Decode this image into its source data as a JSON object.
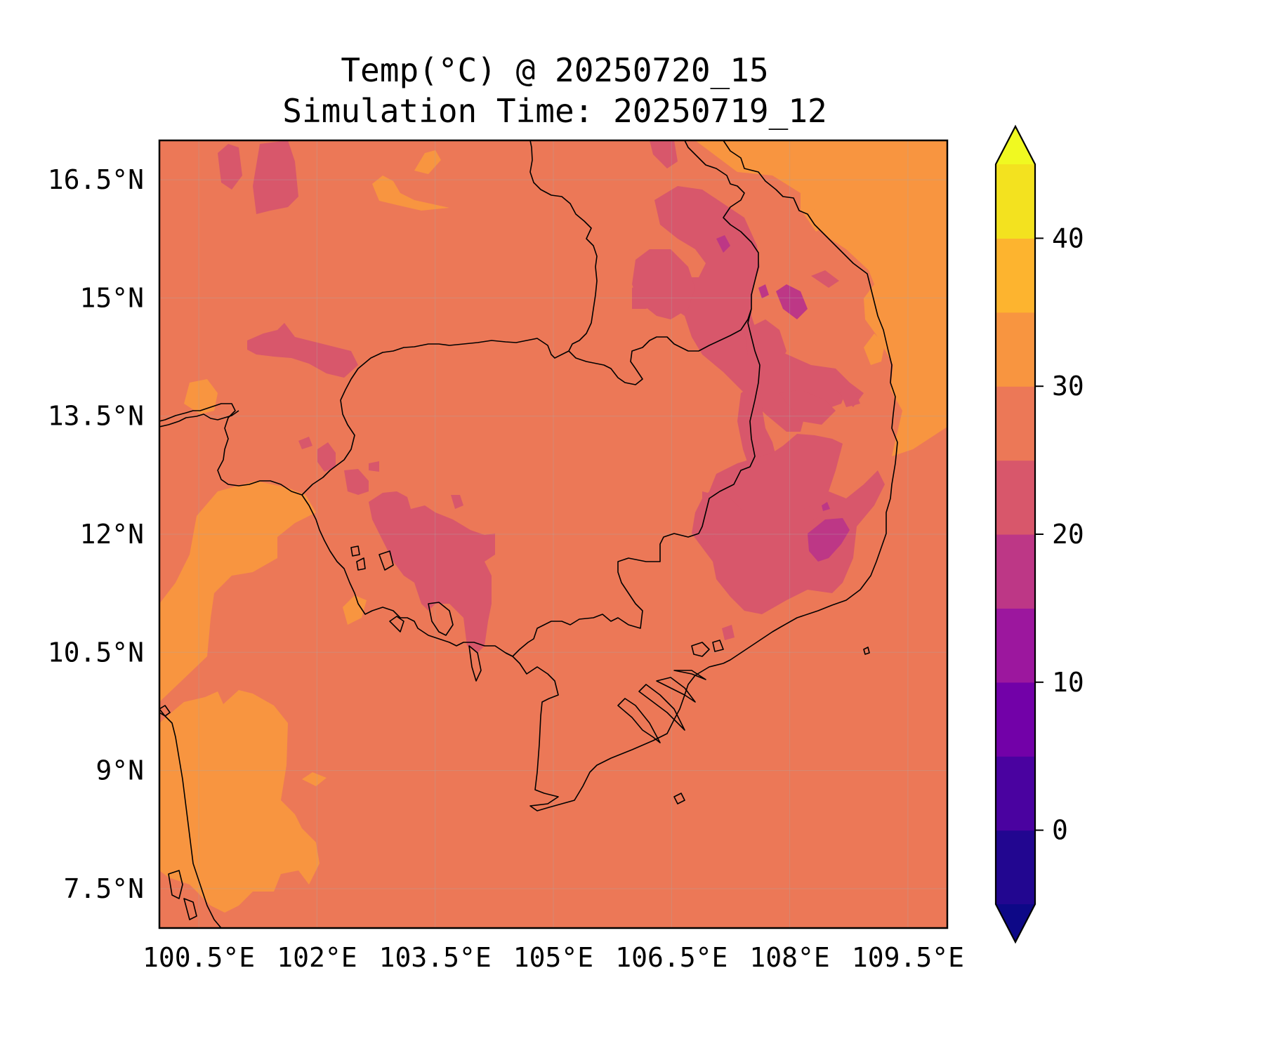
{
  "title": "Temp(°C) @ 20250720_15",
  "subtitle": "Simulation Time: 20250719_12",
  "map": {
    "type": "filled-contour-map",
    "variable": "Temperature",
    "unit": "°C",
    "lon_range": [
      100.0,
      110.0
    ],
    "lat_range": [
      7.0,
      17.0
    ],
    "lon_ticks": [
      "100.5°E",
      "102°E",
      "103.5°E",
      "105°E",
      "106.5°E",
      "108°E",
      "109.5°E"
    ],
    "lat_ticks": [
      "16.5°N",
      "15°N",
      "13.5°N",
      "12°N",
      "10.5°N",
      "9°N",
      "7.5°N"
    ],
    "lon_tick_values": [
      100.5,
      102,
      103.5,
      105,
      106.5,
      108,
      109.5
    ],
    "lat_tick_values": [
      16.5,
      15,
      13.5,
      12,
      10.5,
      9,
      7.5
    ],
    "grid": true,
    "dominant_range": "25–30 °C",
    "warm_areas": "30–35 °C over Gulf of Thailand, SW sea and South China Sea (NE)",
    "cool_areas": "15–25 °C over western Cambodia highlands and Central Highlands of Vietnam/Laos"
  },
  "colorbar": {
    "levels": [
      -5,
      0,
      5,
      10,
      15,
      20,
      25,
      30,
      35,
      40,
      45
    ],
    "colors": [
      "#0d0887",
      "#220690",
      "#4a02a0",
      "#7201a8",
      "#9c179e",
      "#bd3786",
      "#d8576b",
      "#ec7857",
      "#f89540",
      "#fdb42f",
      "#f0f921"
    ],
    "band_colors": [
      "#220690",
      "#4a02a0",
      "#7201a8",
      "#9c179e",
      "#bd3786",
      "#d8576b",
      "#ec7857",
      "#f89540",
      "#fdb42f",
      "#f3e21f"
    ],
    "under_color": "#0d0887",
    "over_color": "#f0f921",
    "tick_labels": [
      "0",
      "10",
      "20",
      "30",
      "40"
    ],
    "tick_values": [
      0,
      10,
      20,
      30,
      40
    ],
    "extend": "both"
  }
}
